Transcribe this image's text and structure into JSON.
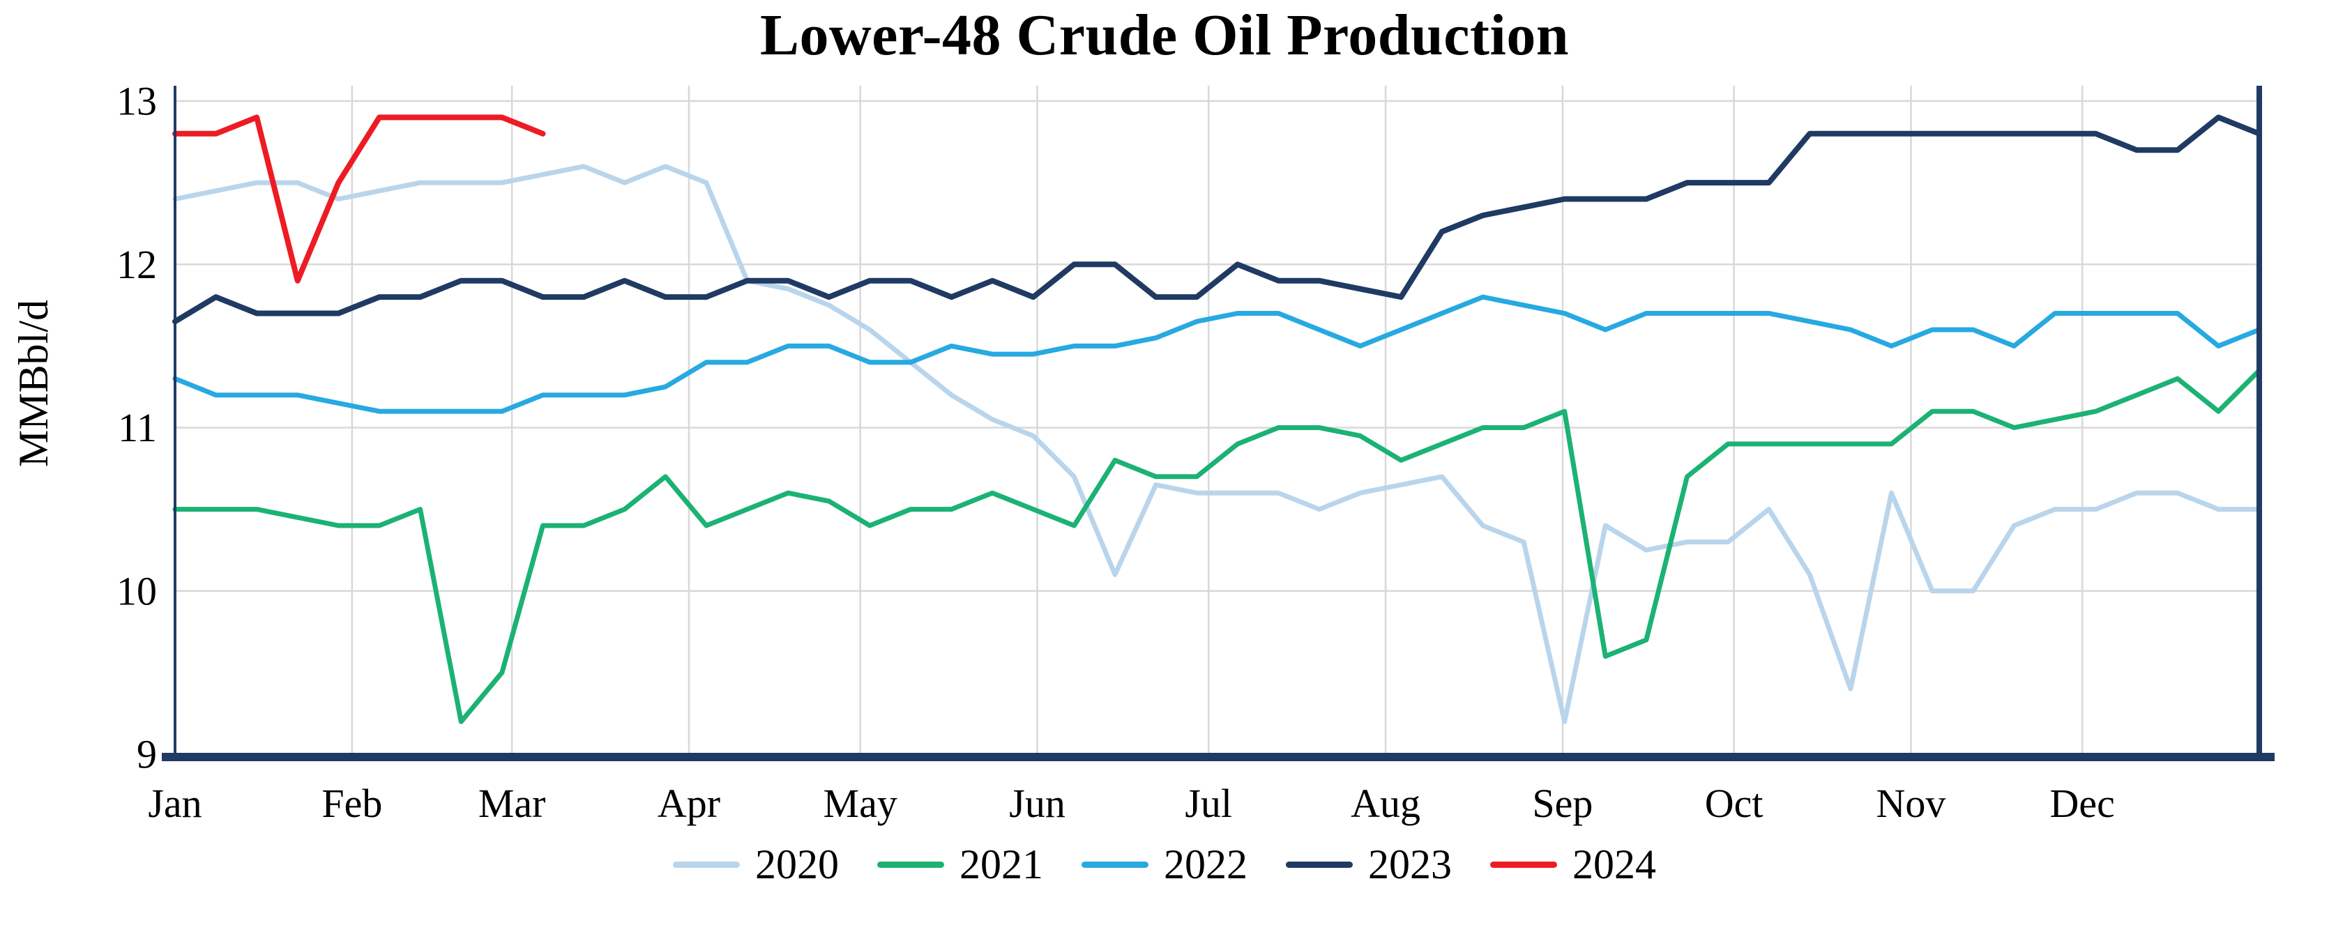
{
  "chart_data": {
    "type": "line",
    "title": "Lower-48 Crude Oil Production",
    "xlabel": "",
    "ylabel": "MMBbl/d",
    "ylim": [
      9,
      13
    ],
    "y_ticks": [
      9,
      10,
      11,
      12,
      13
    ],
    "x_tick_labels": [
      "Jan",
      "Feb",
      "Mar",
      "Apr",
      "May",
      "Jun",
      "Jul",
      "Aug",
      "Sep",
      "Oct",
      "Nov",
      "Dec"
    ],
    "x_unit": "weekly observations across one year",
    "grid": true,
    "legend_position": "bottom",
    "series": [
      {
        "name": "2020",
        "color": "#b9d5ec",
        "values": [
          12.4,
          12.45,
          12.5,
          12.5,
          12.4,
          12.45,
          12.5,
          12.5,
          12.5,
          12.55,
          12.6,
          12.5,
          12.6,
          12.5,
          11.9,
          11.85,
          11.75,
          11.6,
          11.4,
          11.2,
          11.05,
          10.95,
          10.7,
          10.1,
          10.65,
          10.6,
          10.6,
          10.6,
          10.5,
          10.6,
          10.65,
          10.7,
          10.4,
          10.3,
          9.2,
          10.4,
          10.25,
          10.3,
          10.3,
          10.5,
          10.1,
          9.4,
          10.6,
          10.0,
          10.0,
          10.4,
          10.5,
          10.5,
          10.6,
          10.6,
          10.5,
          10.5
        ]
      },
      {
        "name": "2021",
        "color": "#1bb273",
        "values": [
          10.5,
          10.5,
          10.5,
          10.45,
          10.4,
          10.4,
          10.5,
          9.2,
          9.5,
          10.4,
          10.4,
          10.5,
          10.7,
          10.4,
          10.5,
          10.6,
          10.55,
          10.4,
          10.5,
          10.5,
          10.6,
          10.5,
          10.4,
          10.8,
          10.7,
          10.7,
          10.9,
          11.0,
          11.0,
          10.95,
          10.8,
          10.9,
          11.0,
          11.0,
          11.1,
          9.6,
          9.7,
          10.7,
          10.9,
          10.9,
          10.9,
          10.9,
          10.9,
          11.1,
          11.1,
          11.0,
          11.05,
          11.1,
          11.2,
          11.3,
          11.1,
          11.35
        ]
      },
      {
        "name": "2022",
        "color": "#27a9e1",
        "values": [
          11.3,
          11.2,
          11.2,
          11.2,
          11.15,
          11.1,
          11.1,
          11.1,
          11.1,
          11.2,
          11.2,
          11.2,
          11.25,
          11.4,
          11.4,
          11.5,
          11.5,
          11.4,
          11.4,
          11.5,
          11.45,
          11.45,
          11.5,
          11.5,
          11.55,
          11.65,
          11.7,
          11.7,
          11.6,
          11.5,
          11.6,
          11.7,
          11.8,
          11.75,
          11.7,
          11.6,
          11.7,
          11.7,
          11.7,
          11.7,
          11.65,
          11.6,
          11.5,
          11.6,
          11.6,
          11.5,
          11.7,
          11.7,
          11.7,
          11.7,
          11.5,
          11.6
        ]
      },
      {
        "name": "2023",
        "color": "#1f3a63",
        "values": [
          11.65,
          11.8,
          11.7,
          11.7,
          11.7,
          11.8,
          11.8,
          11.9,
          11.9,
          11.8,
          11.8,
          11.9,
          11.8,
          11.8,
          11.9,
          11.9,
          11.8,
          11.9,
          11.9,
          11.8,
          11.9,
          11.8,
          12.0,
          12.0,
          11.8,
          11.8,
          12.0,
          11.9,
          11.9,
          11.85,
          11.8,
          12.2,
          12.3,
          12.35,
          12.4,
          12.4,
          12.4,
          12.5,
          12.5,
          12.5,
          12.8,
          12.8,
          12.8,
          12.8,
          12.8,
          12.8,
          12.8,
          12.8,
          12.7,
          12.7,
          12.9,
          12.8
        ]
      },
      {
        "name": "2024",
        "color": "#ed1c24",
        "values": [
          12.8,
          12.8,
          12.9,
          11.9,
          12.5,
          12.9,
          12.9,
          12.9,
          12.9,
          12.8
        ]
      }
    ]
  },
  "colors": {
    "axis": "#1f3a63",
    "grid": "#d8d8d8",
    "text": "#000000",
    "background": "#ffffff"
  }
}
